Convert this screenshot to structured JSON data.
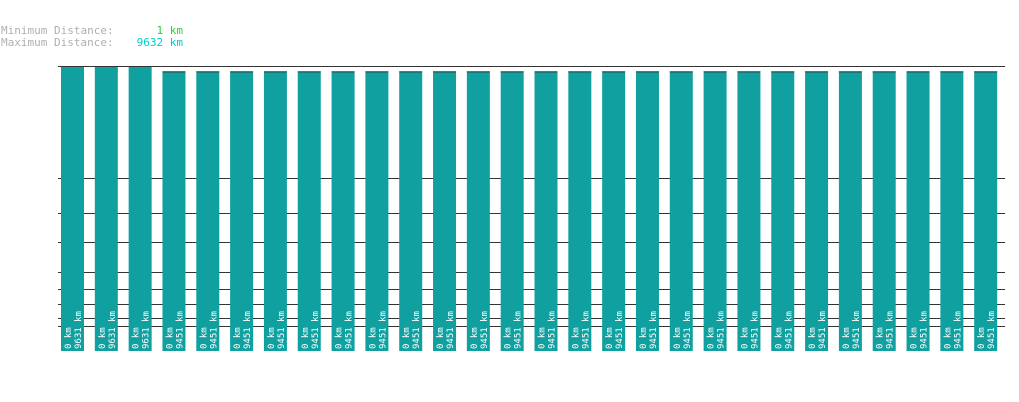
{
  "stats": {
    "min_label": "Minimum Distance:",
    "min_value": "1 km",
    "min_color": "#33cc33",
    "max_label": "Maximum Distance:",
    "max_value": "9632 km",
    "max_color": "#00cccc"
  },
  "chart_data": {
    "type": "bar",
    "title": "",
    "xlabel": "",
    "ylabel": "",
    "ylim": [
      0,
      9632
    ],
    "grid": true,
    "bar_color": "#11a0a0",
    "series": [
      {
        "values": [
          9631,
          9631,
          9631,
          9451,
          9451,
          9451,
          9451,
          9451,
          9451,
          9451,
          9451,
          9451,
          9451,
          9451,
          9451,
          9451,
          9451,
          9451,
          9451,
          9451,
          9451,
          9451,
          9451,
          9451,
          9451,
          9451,
          9451,
          9451
        ]
      }
    ],
    "labels_bottom": [
      "0 km",
      "0 km",
      "0 km",
      "0 km",
      "0 km",
      "0 km",
      "0 km",
      "0 km",
      "0 km",
      "0 km",
      "0 km",
      "0 km",
      "0 km",
      "0 km",
      "0 km",
      "0 km",
      "0 km",
      "0 km",
      "0 km",
      "0 km",
      "0 km",
      "0 km",
      "0 km",
      "0 km",
      "0 km",
      "0 km",
      "0 km",
      "0 km"
    ],
    "labels_top": [
      "9631 km",
      "9631 km",
      "9631 km",
      "9451 km",
      "9451 km",
      "9451 km",
      "9451 km",
      "9451 km",
      "9451 km",
      "9451 km",
      "9451 km",
      "9451 km",
      "9451 km",
      "9451 km",
      "9451 km",
      "9451 km",
      "9451 km",
      "9451 km",
      "9451 km",
      "9451 km",
      "9451 km",
      "9451 km",
      "9451 km",
      "9451 km",
      "9451 km",
      "9451 km",
      "9451 km",
      "9451 km"
    ]
  }
}
